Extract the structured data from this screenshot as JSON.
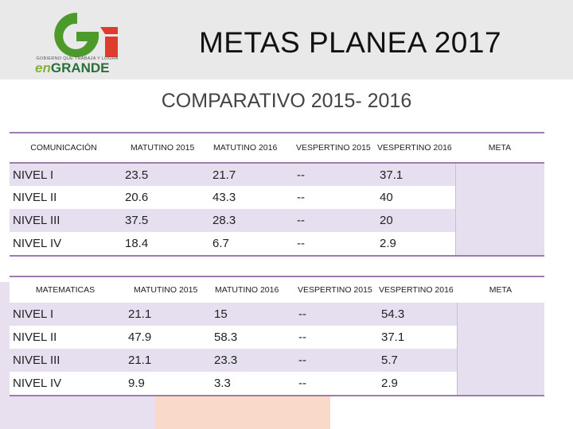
{
  "header": {
    "logo_tagline": "GOBIERNO QUE TRABAJA Y LOGRA",
    "logo_en": "en",
    "logo_grande": "GRANDE",
    "title": "METAS PLANEA 2017"
  },
  "subtitle": "COMPARATIVO 2015- 2016",
  "colors": {
    "brand_green": "#4c9a2a",
    "brand_red": "#e03c2c",
    "rule_purple": "#a07bb0",
    "row_lavender": "#e6dff0"
  },
  "tables": [
    {
      "headers": [
        "COMUNICACIÓN",
        "MATUTINO 2015",
        "MATUTINO 2016",
        "VESPERTINO 2015",
        "VESPERTINO 2016",
        "META"
      ],
      "rows": [
        [
          "NIVEL I",
          "23.5",
          "21.7",
          "--",
          "37.1"
        ],
        [
          "NIVEL II",
          "20.6",
          "43.3",
          "--",
          "40"
        ],
        [
          "NIVEL III",
          "37.5",
          "28.3",
          "--",
          "20"
        ],
        [
          "NIVEL IV",
          "18.4",
          "6.7",
          "--",
          "2.9"
        ]
      ]
    },
    {
      "headers": [
        "MATEMATICAS",
        "MATUTINO 2015",
        "MATUTINO 2016",
        "VESPERTINO 2015",
        "VESPERTINO 2016",
        "META"
      ],
      "rows": [
        [
          "NIVEL I",
          "21.1",
          "15",
          "--",
          "54.3"
        ],
        [
          "NIVEL II",
          "47.9",
          "58.3",
          "--",
          "37.1"
        ],
        [
          "NIVEL III",
          "21.1",
          "23.3",
          "--",
          "5.7"
        ],
        [
          "NIVEL IV",
          "9.9",
          "3.3",
          "--",
          "2.9"
        ]
      ]
    }
  ]
}
